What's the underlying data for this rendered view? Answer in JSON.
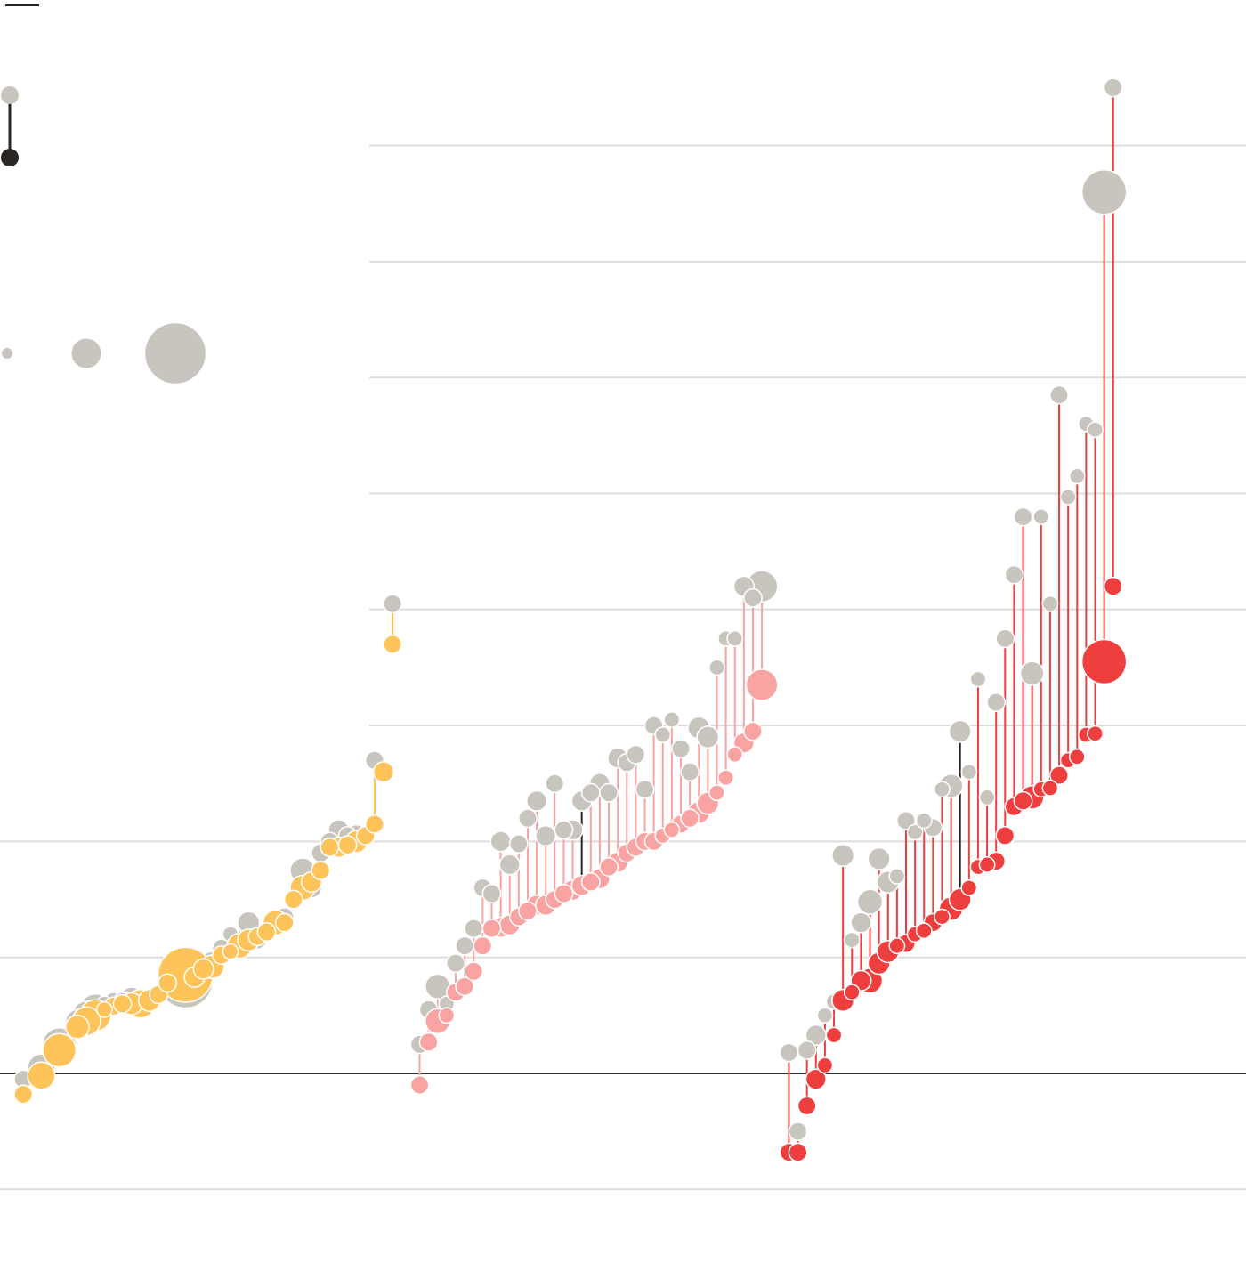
{
  "chart_data": {
    "type": "scatter",
    "subtype": "dumbbell-bubble",
    "title": "",
    "xlabel": "",
    "ylabel": "",
    "ylim": [
      -1,
      8
    ],
    "grid": true,
    "legend": {
      "placement": "top-left",
      "change_key": {
        "from_color": "#c8c5bf",
        "to_color": "#2b2622",
        "labels": []
      },
      "size_key": {
        "values": [
          1,
          10,
          50
        ],
        "labels": []
      }
    },
    "colors": {
      "before": "#c8c5bf",
      "group_1": "#fec45a",
      "group_2": "#faa3a3",
      "group_3": "#ef3e3e",
      "highlight_stroke": "#2b2622",
      "grid": "#dddddd",
      "zero_line": "#333333"
    },
    "series": [
      {
        "color_key": "group_1",
        "points": [
          {
            "x": 2,
            "before": -0.05,
            "after": -0.18,
            "size": 2
          },
          {
            "x": 4,
            "before": 0.05,
            "after": -0.02,
            "size": 8
          },
          {
            "x": 6,
            "before": 0.25,
            "after": 0.2,
            "size": 14
          },
          {
            "x": 8,
            "before": 0.45,
            "after": 0.4,
            "size": 5
          },
          {
            "x": 9,
            "before": 0.5,
            "after": 0.45,
            "size": 9
          },
          {
            "x": 10,
            "before": 0.55,
            "after": 0.5,
            "size": 12
          },
          {
            "x": 11,
            "before": 0.6,
            "after": 0.55,
            "size": 1
          },
          {
            "x": 12,
            "before": 0.62,
            "after": 0.58,
            "size": 2
          },
          {
            "x": 13,
            "before": 0.62,
            "after": 0.6,
            "size": 2
          },
          {
            "x": 14,
            "before": 0.65,
            "after": 0.6,
            "size": 4
          },
          {
            "x": 15,
            "before": 0.6,
            "after": 0.6,
            "size": 9
          },
          {
            "x": 16,
            "before": 0.63,
            "after": 0.63,
            "size": 4
          },
          {
            "x": 17,
            "before": 0.68,
            "after": 0.68,
            "size": 2
          },
          {
            "x": 18,
            "before": 0.78,
            "after": 0.78,
            "size": 2
          },
          {
            "x": 20,
            "before": 0.8,
            "after": 0.85,
            "size": 50
          },
          {
            "x": 21,
            "before": 0.85,
            "after": 0.83,
            "size": 3
          },
          {
            "x": 22,
            "before": 0.92,
            "after": 0.9,
            "size": 3
          },
          {
            "x": 23,
            "before": 0.95,
            "after": 0.92,
            "size": 5
          },
          {
            "x": 24,
            "before": 1.08,
            "after": 1.02,
            "size": 2
          },
          {
            "x": 25,
            "before": 1.2,
            "after": 1.05,
            "size": 1
          },
          {
            "x": 26,
            "before": 1.13,
            "after": 1.1,
            "size": 6,
            "highlight": true
          },
          {
            "x": 27,
            "before": 1.3,
            "after": 1.15,
            "size": 4
          },
          {
            "x": 28,
            "before": 1.15,
            "after": 1.18,
            "size": 2
          },
          {
            "x": 29,
            "before": 1.22,
            "after": 1.22,
            "size": 2
          },
          {
            "x": 30,
            "before": 1.3,
            "after": 1.3,
            "size": 6
          },
          {
            "x": 31,
            "before": 1.35,
            "after": 1.3,
            "size": 2
          },
          {
            "x": 32,
            "before": 1.5,
            "after": 1.5,
            "size": 2
          },
          {
            "x": 33,
            "before": 1.75,
            "after": 1.6,
            "size": 6
          },
          {
            "x": 34,
            "before": 1.6,
            "after": 1.65,
            "size": 3
          },
          {
            "x": 35,
            "before": 1.9,
            "after": 1.75,
            "size": 2
          },
          {
            "x": 36,
            "before": 2.0,
            "after": 1.95,
            "size": 2
          },
          {
            "x": 37,
            "before": 2.1,
            "after": 1.95,
            "size": 3
          },
          {
            "x": 38,
            "before": 2.05,
            "after": 1.97,
            "size": 2
          },
          {
            "x": 39,
            "before": 2.05,
            "after": 2.0,
            "size": 4
          },
          {
            "x": 40,
            "before": 2.05,
            "after": 2.05,
            "size": 2
          },
          {
            "x": 41,
            "before": 2.7,
            "after": 2.15,
            "size": 2
          },
          {
            "x": 42,
            "before": 2.6,
            "after": 2.6,
            "size": 3
          },
          {
            "x": 43,
            "before": 4.05,
            "after": 3.7,
            "size": 2
          }
        ]
      },
      {
        "color_key": "group_2",
        "points": [
          {
            "x": 46,
            "before": 0.25,
            "after": -0.1,
            "size": 2
          },
          {
            "x": 47,
            "before": 0.55,
            "after": 0.27,
            "size": 2
          },
          {
            "x": 48,
            "before": 0.75,
            "after": 0.45,
            "size": 6
          },
          {
            "x": 49,
            "before": 0.6,
            "after": 0.5,
            "size": 1
          },
          {
            "x": 50,
            "before": 0.95,
            "after": 0.7,
            "size": 2
          },
          {
            "x": 51,
            "before": 1.1,
            "after": 0.75,
            "size": 2
          },
          {
            "x": 52,
            "before": 1.25,
            "after": 0.88,
            "size": 2
          },
          {
            "x": 53,
            "before": 1.6,
            "after": 1.1,
            "size": 2
          },
          {
            "x": 54,
            "before": 1.55,
            "after": 1.25,
            "size": 2
          },
          {
            "x": 55,
            "before": 2.0,
            "after": 1.26,
            "size": 3
          },
          {
            "x": 56,
            "before": 1.8,
            "after": 1.28,
            "size": 3
          },
          {
            "x": 57,
            "before": 1.98,
            "after": 1.35,
            "size": 2
          },
          {
            "x": 58,
            "before": 2.2,
            "after": 1.4,
            "size": 2
          },
          {
            "x": 59,
            "before": 2.35,
            "after": 1.45,
            "size": 3
          },
          {
            "x": 60,
            "before": 2.05,
            "after": 1.45,
            "size": 3
          },
          {
            "x": 61,
            "before": 2.5,
            "after": 1.5,
            "size": 2
          },
          {
            "x": 62,
            "before": 2.1,
            "after": 1.55,
            "size": 2
          },
          {
            "x": 63,
            "before": 2.1,
            "after": 1.58,
            "size": 3
          },
          {
            "x": 64,
            "before": 2.35,
            "after": 1.62,
            "size": 3,
            "highlight": true
          },
          {
            "x": 65,
            "before": 2.42,
            "after": 1.65,
            "size": 2
          },
          {
            "x": 66,
            "before": 2.5,
            "after": 1.68,
            "size": 3
          },
          {
            "x": 67,
            "before": 2.42,
            "after": 1.78,
            "size": 2
          },
          {
            "x": 68,
            "before": 2.72,
            "after": 1.82,
            "size": 3
          },
          {
            "x": 69,
            "before": 2.68,
            "after": 1.9,
            "size": 2
          },
          {
            "x": 70,
            "before": 2.75,
            "after": 1.95,
            "size": 2
          },
          {
            "x": 71,
            "before": 2.45,
            "after": 2.0,
            "size": 2
          },
          {
            "x": 72,
            "before": 3.0,
            "after": 2.0,
            "size": 2
          },
          {
            "x": 73,
            "before": 2.92,
            "after": 2.05,
            "size": 1
          },
          {
            "x": 74,
            "before": 3.05,
            "after": 2.1,
            "size": 1
          },
          {
            "x": 75,
            "before": 2.8,
            "after": 2.15,
            "size": 2
          },
          {
            "x": 76,
            "before": 2.6,
            "after": 2.2,
            "size": 2
          },
          {
            "x": 77,
            "before": 2.98,
            "after": 2.25,
            "size": 4
          },
          {
            "x": 78,
            "before": 2.9,
            "after": 2.33,
            "size": 4
          },
          {
            "x": 79,
            "before": 3.5,
            "after": 2.42,
            "size": 1
          },
          {
            "x": 80,
            "before": 3.75,
            "after": 2.55,
            "size": 1
          },
          {
            "x": 81,
            "before": 3.75,
            "after": 2.75,
            "size": 1
          },
          {
            "x": 82,
            "before": 4.2,
            "after": 2.85,
            "size": 3
          },
          {
            "x": 83,
            "before": 4.1,
            "after": 2.95,
            "size": 2
          },
          {
            "x": 84,
            "before": 4.2,
            "after": 3.35,
            "size": 12
          }
        ]
      },
      {
        "color_key": "group_3",
        "points": [
          {
            "x": 87,
            "before": 0.18,
            "after": -0.68,
            "size": 2
          },
          {
            "x": 88,
            "before": -0.5,
            "after": -0.68,
            "size": 2
          },
          {
            "x": 89,
            "before": 0.2,
            "after": -0.28,
            "size": 2
          },
          {
            "x": 90,
            "before": 0.33,
            "after": -0.05,
            "size": 3
          },
          {
            "x": 91,
            "before": 0.5,
            "after": 0.07,
            "size": 1
          },
          {
            "x": 92,
            "before": 0.62,
            "after": 0.33,
            "size": 1
          },
          {
            "x": 93,
            "before": 1.88,
            "after": 0.63,
            "size": 4
          },
          {
            "x": 94,
            "before": 1.15,
            "after": 0.7,
            "size": 1
          },
          {
            "x": 95,
            "before": 1.3,
            "after": 0.8,
            "size": 3
          },
          {
            "x": 96,
            "before": 1.48,
            "after": 0.8,
            "size": 6
          },
          {
            "x": 97,
            "before": 1.85,
            "after": 0.95,
            "size": 4
          },
          {
            "x": 98,
            "before": 1.65,
            "after": 1.05,
            "size": 4
          },
          {
            "x": 99,
            "before": 1.7,
            "after": 1.1,
            "size": 1
          },
          {
            "x": 100,
            "before": 2.18,
            "after": 1.12,
            "size": 2
          },
          {
            "x": 101,
            "before": 2.08,
            "after": 1.2,
            "size": 1
          },
          {
            "x": 102,
            "before": 2.18,
            "after": 1.23,
            "size": 1
          },
          {
            "x": 103,
            "before": 2.12,
            "after": 1.3,
            "size": 2
          },
          {
            "x": 104,
            "before": 2.45,
            "after": 1.35,
            "size": 1
          },
          {
            "x": 105,
            "before": 2.48,
            "after": 1.42,
            "size": 5
          },
          {
            "x": 106,
            "before": 2.95,
            "after": 1.5,
            "size": 4,
            "highlight": true
          },
          {
            "x": 107,
            "before": 2.6,
            "after": 1.6,
            "size": 1
          },
          {
            "x": 108,
            "before": 3.4,
            "after": 1.78,
            "size": 1
          },
          {
            "x": 109,
            "before": 2.38,
            "after": 1.8,
            "size": 1
          },
          {
            "x": 110,
            "before": 3.2,
            "after": 1.83,
            "size": 2
          },
          {
            "x": 111,
            "before": 3.75,
            "after": 2.05,
            "size": 2
          },
          {
            "x": 112,
            "before": 4.3,
            "after": 2.3,
            "size": 2
          },
          {
            "x": 113,
            "before": 4.8,
            "after": 2.35,
            "size": 2
          },
          {
            "x": 114,
            "before": 3.45,
            "after": 2.38,
            "size": 5
          },
          {
            "x": 115,
            "before": 4.8,
            "after": 2.45,
            "size": 1
          },
          {
            "x": 116,
            "before": 4.05,
            "after": 2.46,
            "size": 1
          },
          {
            "x": 117,
            "before": 5.85,
            "after": 2.57,
            "size": 2
          },
          {
            "x": 118,
            "before": 4.97,
            "after": 2.7,
            "size": 1
          },
          {
            "x": 119,
            "before": 5.15,
            "after": 2.73,
            "size": 1
          },
          {
            "x": 120,
            "before": 5.6,
            "after": 2.92,
            "size": 1
          },
          {
            "x": 121,
            "before": 5.55,
            "after": 2.93,
            "size": 1
          },
          {
            "x": 122,
            "before": 7.6,
            "after": 3.55,
            "size": 30
          },
          {
            "x": 123,
            "before": 8.5,
            "after": 4.2,
            "size": 2
          }
        ]
      }
    ]
  }
}
